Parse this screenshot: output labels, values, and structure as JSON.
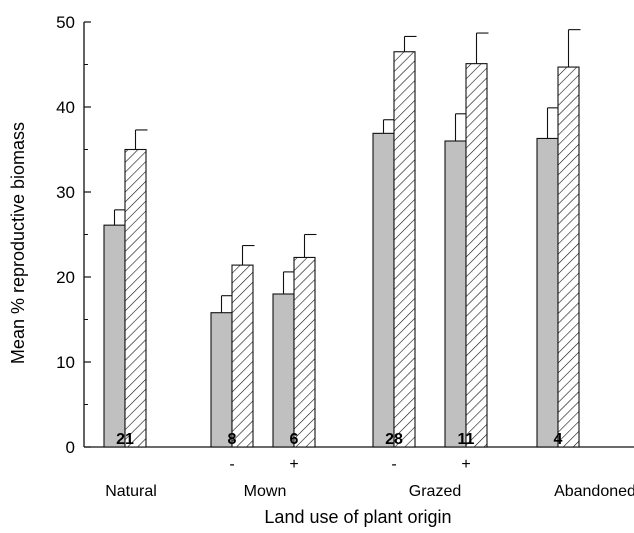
{
  "chart_data": {
    "type": "bar",
    "title": "",
    "xlabel": "Land use of plant origin",
    "ylabel": "Mean % reproductive biomass",
    "ylim": [
      0,
      50
    ],
    "yticks": [
      0,
      10,
      20,
      30,
      40,
      50
    ],
    "grid": false,
    "legend": "none",
    "groups": [
      {
        "label": "Natural",
        "sub": [
          ""
        ]
      },
      {
        "label": "Mown",
        "sub": [
          "-",
          "+"
        ]
      },
      {
        "label": "Grazed",
        "sub": [
          "-",
          "+"
        ]
      },
      {
        "label": "Abandoned",
        "sub": [
          ""
        ]
      }
    ],
    "categories": [
      "Natural",
      "Mown -",
      "Mown +",
      "Grazed -",
      "Grazed +",
      "Abandoned"
    ],
    "n_labels": [
      "21",
      "8",
      "6",
      "28",
      "11",
      "4"
    ],
    "series": [
      {
        "style": "solid-gray",
        "values": [
          26.1,
          15.8,
          18.0,
          36.9,
          36.0,
          36.3
        ],
        "errors": [
          1.8,
          2.0,
          2.6,
          1.6,
          3.2,
          3.6
        ]
      },
      {
        "style": "hatched",
        "values": [
          35.0,
          21.4,
          22.3,
          46.5,
          45.1,
          44.7
        ],
        "errors": [
          2.3,
          2.3,
          2.7,
          1.8,
          3.6,
          4.4
        ]
      }
    ],
    "colors": {
      "solid": "#c0c0c0",
      "hatched_fill": "#ffffff",
      "stroke": "#111111"
    }
  }
}
